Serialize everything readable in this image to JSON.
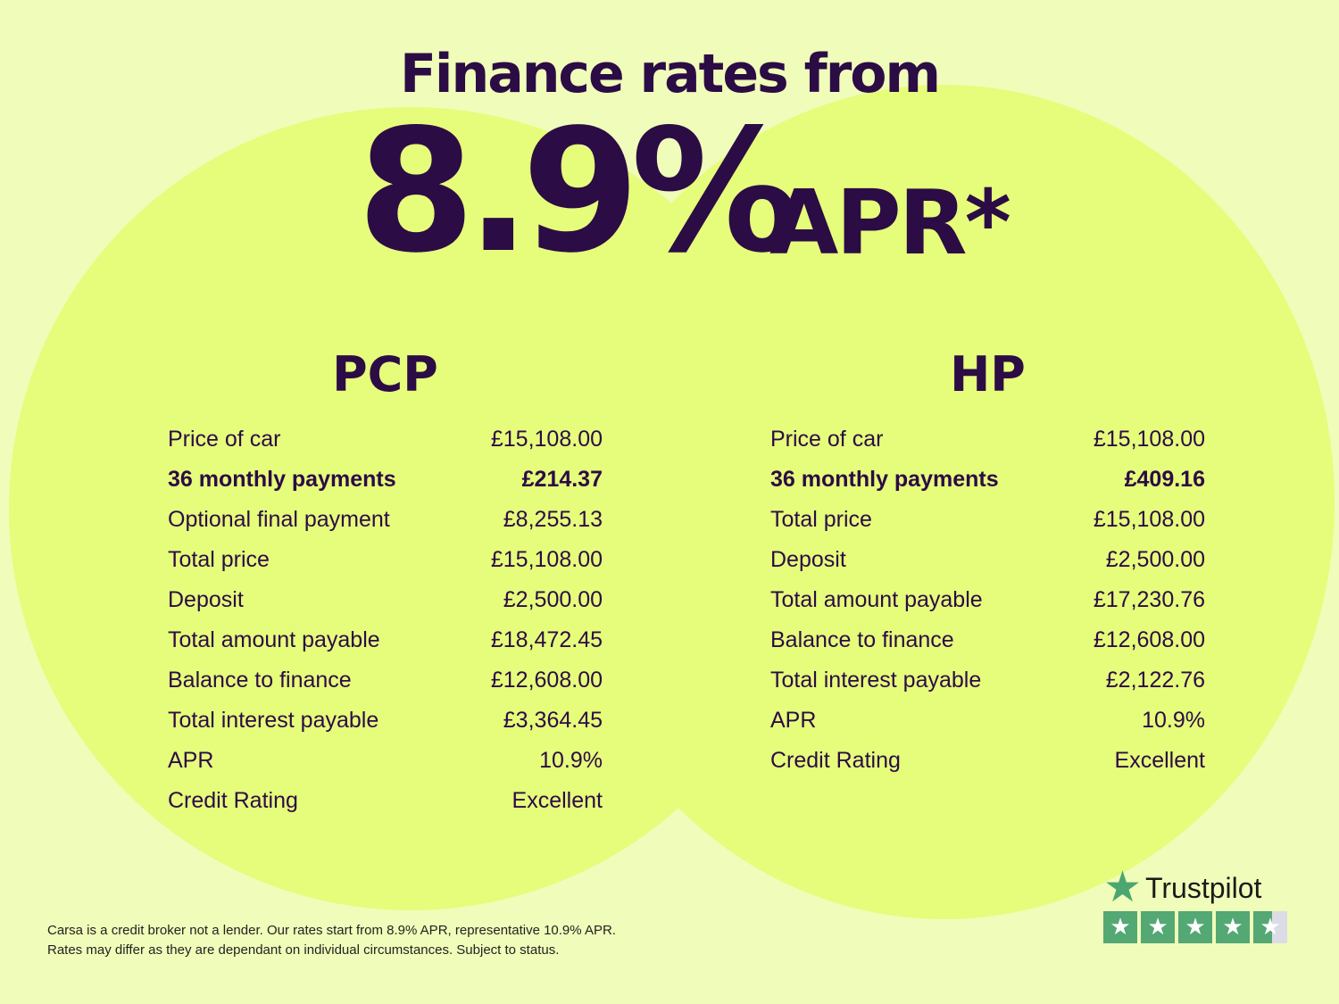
{
  "headline": {
    "title": "Finance rates from",
    "rate": "8.9%",
    "apr": "APR*"
  },
  "pcp": {
    "title": "PCP",
    "rows": [
      {
        "label": "Price of car",
        "value": "£15,108.00"
      },
      {
        "label": "36 monthly payments",
        "value": "£214.37",
        "bold": true
      },
      {
        "label": "Optional final payment",
        "value": "£8,255.13"
      },
      {
        "label": "Total price",
        "value": "£15,108.00"
      },
      {
        "label": "Deposit",
        "value": "£2,500.00"
      },
      {
        "label": "Total amount payable",
        "value": "£18,472.45"
      },
      {
        "label": "Balance to finance",
        "value": "£12,608.00"
      },
      {
        "label": "Total interest payable",
        "value": "£3,364.45"
      },
      {
        "label": "APR",
        "value": "10.9%"
      },
      {
        "label": "Credit Rating",
        "value": "Excellent"
      }
    ]
  },
  "hp": {
    "title": "HP",
    "rows": [
      {
        "label": "Price of car",
        "value": "£15,108.00"
      },
      {
        "label": "36 monthly payments",
        "value": "£409.16",
        "bold": true
      },
      {
        "label": "Total price",
        "value": "£15,108.00"
      },
      {
        "label": "Deposit",
        "value": "£2,500.00"
      },
      {
        "label": "Total amount payable",
        "value": "£17,230.76"
      },
      {
        "label": "Balance to finance",
        "value": "£12,608.00"
      },
      {
        "label": "Total interest payable",
        "value": "£2,122.76"
      },
      {
        "label": "APR",
        "value": "10.9%"
      },
      {
        "label": "Credit Rating",
        "value": "Excellent"
      }
    ]
  },
  "footer": {
    "line1": "Carsa is a credit broker not a lender. Our rates start from 8.9% APR, representative 10.9% APR.",
    "line2": "Rates may differ as they are dependant on individual circumstances. Subject to status."
  },
  "trustpilot": {
    "name": "Trustpilot",
    "rating_stars": 4.5,
    "icon": "star-icon",
    "color": "#53a874"
  }
}
